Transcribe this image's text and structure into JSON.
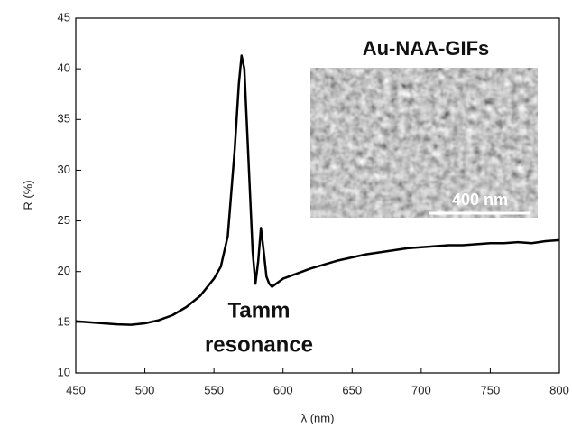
{
  "chart_data": {
    "type": "line",
    "xlabel": "λ (nm)",
    "ylabel": "R (%)",
    "x": [
      450,
      460,
      470,
      480,
      490,
      500,
      510,
      520,
      530,
      540,
      550,
      555,
      560,
      565,
      568,
      570,
      572,
      575,
      578,
      580,
      582,
      584,
      586,
      588,
      590,
      592,
      595,
      600,
      610,
      620,
      630,
      640,
      650,
      660,
      670,
      680,
      690,
      700,
      710,
      720,
      730,
      740,
      750,
      760,
      770,
      780,
      790,
      800
    ],
    "values": [
      15.1,
      15.0,
      14.9,
      14.8,
      14.75,
      14.9,
      15.2,
      15.7,
      16.5,
      17.6,
      19.3,
      20.5,
      23.5,
      32,
      38.5,
      41.3,
      40,
      31,
      22,
      18.8,
      21,
      24.3,
      22,
      19.5,
      18.8,
      18.5,
      18.8,
      19.3,
      19.8,
      20.3,
      20.7,
      21.1,
      21.4,
      21.7,
      21.9,
      22.1,
      22.3,
      22.4,
      22.5,
      22.6,
      22.6,
      22.7,
      22.8,
      22.8,
      22.9,
      22.8,
      23.0,
      23.1
    ],
    "color": "#000000",
    "xlim": [
      450,
      800
    ],
    "xticks": [
      450,
      500,
      550,
      600,
      650,
      700,
      750,
      800
    ],
    "ylim": [
      10,
      45
    ],
    "yticks": [
      10,
      15,
      20,
      25,
      30,
      35,
      40,
      45
    ],
    "annotation_lines": [
      "Tamm",
      "resonance"
    ],
    "inset": {
      "title": "Au-NAA-GIFs",
      "scale_label": "400 nm"
    }
  }
}
